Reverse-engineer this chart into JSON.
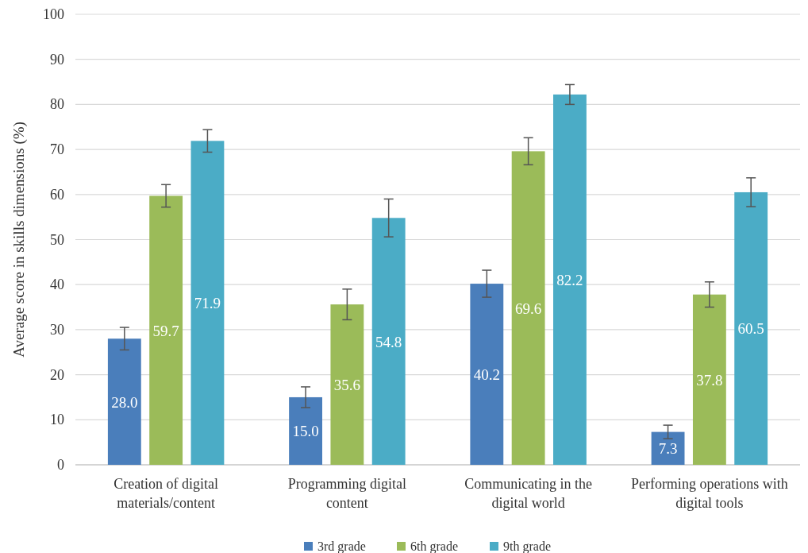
{
  "chart_data": {
    "type": "bar",
    "ylabel": "Average score in skills dimensions (%)",
    "categories": [
      "Creation of digital materials/content",
      "Programming digital content",
      "Communicating in the digital world",
      "Performing operations with digital tools"
    ],
    "series": [
      {
        "name": "3rd grade",
        "color": "#4a7ebb",
        "values": [
          28.0,
          15.0,
          40.2,
          7.3
        ],
        "value_labels": [
          "28.0",
          "15.0",
          "40.2",
          "7.3"
        ],
        "errors": [
          2.5,
          2.3,
          3.0,
          1.5
        ]
      },
      {
        "name": "6th grade",
        "color": "#9bbb59",
        "values": [
          59.7,
          35.6,
          69.6,
          37.8
        ],
        "value_labels": [
          "59.7",
          "35.6",
          "69.6",
          "37.8"
        ],
        "errors": [
          2.5,
          3.4,
          3.0,
          2.8
        ]
      },
      {
        "name": "9th grade",
        "color": "#4bacc6",
        "values": [
          71.9,
          54.8,
          82.2,
          60.5
        ],
        "value_labels": [
          "71.9",
          "54.8",
          "82.2",
          "60.5"
        ],
        "errors": [
          2.5,
          4.2,
          2.2,
          3.2
        ]
      }
    ],
    "ylim": [
      0,
      100
    ],
    "yticks": [
      0,
      10,
      20,
      30,
      40,
      50,
      60,
      70,
      80,
      90,
      100
    ],
    "grid": "y",
    "legend": "bottom"
  }
}
